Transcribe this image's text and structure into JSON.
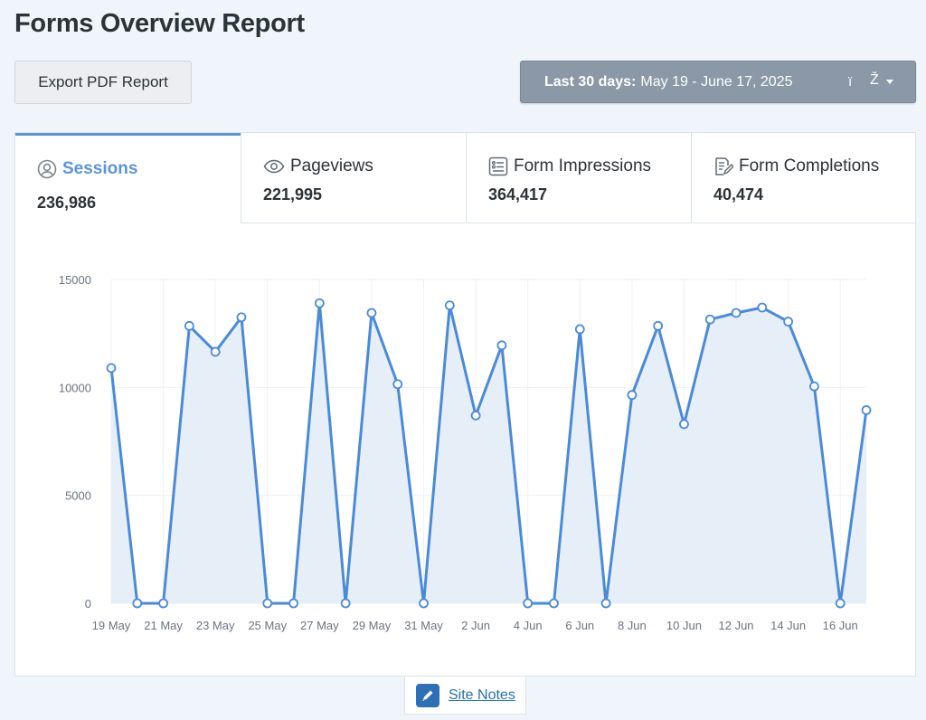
{
  "page": {
    "title": "Forms Overview Report"
  },
  "toolbar": {
    "export_label": "Export PDF Report",
    "date_range_label": "Last 30 days:",
    "date_range_value": "May 19 - June 17, 2025",
    "date_icon_glyph": "ï",
    "date_caret_glyph": "Ž"
  },
  "tabs": [
    {
      "label": "Sessions",
      "value": "236,986",
      "icon": "user-circle-icon",
      "active": true
    },
    {
      "label": "Pageviews",
      "value": "221,995",
      "icon": "eye-icon",
      "active": false
    },
    {
      "label": "Form Impressions",
      "value": "364,417",
      "icon": "form-list-icon",
      "active": false
    },
    {
      "label": "Form Completions",
      "value": "40,474",
      "icon": "form-edit-icon",
      "active": false
    }
  ],
  "colors": {
    "accent": "#5b94d9",
    "line": "#4a8ad8",
    "fill": "#e3ecf7",
    "date_button": "#8b98a7"
  },
  "chart_data": {
    "type": "area",
    "x": [
      "19 May",
      "20 May",
      "21 May",
      "22 May",
      "23 May",
      "24 May",
      "25 May",
      "26 May",
      "27 May",
      "28 May",
      "29 May",
      "30 May",
      "31 May",
      "1 Jun",
      "2 Jun",
      "3 Jun",
      "4 Jun",
      "5 Jun",
      "6 Jun",
      "7 Jun",
      "8 Jun",
      "9 Jun",
      "10 Jun",
      "11 Jun",
      "12 Jun",
      "13 Jun",
      "14 Jun",
      "15 Jun",
      "16 Jun",
      "17 Jun"
    ],
    "xticks": [
      "19 May",
      "21 May",
      "23 May",
      "25 May",
      "27 May",
      "29 May",
      "31 May",
      "2 Jun",
      "4 Jun",
      "6 Jun",
      "8 Jun",
      "10 Jun",
      "12 Jun",
      "14 Jun",
      "16 Jun"
    ],
    "series": [
      {
        "values": [
          10900,
          0,
          0,
          12850,
          11650,
          13250,
          0,
          0,
          13900,
          0,
          13450,
          10150,
          0,
          13800,
          8700,
          11950,
          0,
          0,
          12700,
          0,
          9650,
          12850,
          8300,
          13150,
          13450,
          13700,
          13050,
          10050,
          0,
          8950
        ]
      }
    ],
    "yticks": [
      0,
      5000,
      10000,
      15000
    ],
    "ylim": [
      0,
      15000
    ],
    "grid": true
  },
  "site_notes": {
    "label": "Site Notes"
  }
}
